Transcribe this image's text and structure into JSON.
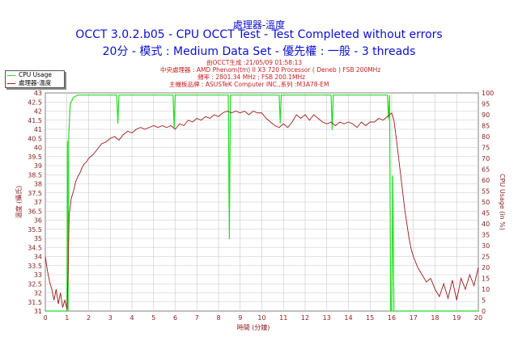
{
  "header": {
    "title_small": "處理器-溫度",
    "title_main": "OCCT 3.0.2.b05 - CPU OCCT Test - Test Completed without errors",
    "title_sub": "20分 - 模式 : Medium Data Set - 優先權 : 一般 - 3 threads"
  },
  "info": {
    "generated": "由OCCT生成 :21/05/09 01:58:13",
    "cpu_label": "中央處理器 :",
    "cpu_value": "AMD Phenom(tm) II X3 720 Processor ( Deneb ) FSB 200MHz",
    "freq_label": "頻率 :",
    "freq_value": "2801.34 MHz ; FSB 200.1MHz",
    "board_label": "主機板品牌 :",
    "board_value": "ASUSTeK Computer INC.,系列 :M3A78-EM"
  },
  "legend": {
    "cpu_usage": "CPU Usage",
    "temp": "處理器-溫度"
  },
  "colors": {
    "title": "#0a0fd2",
    "temp_line": "#a01818",
    "cpu_line": "#22dd22",
    "grid": "#c8c8c8",
    "axis_text": "#8b1a1a"
  },
  "chart_data": {
    "type": "line",
    "xlabel": "時間 (分鐘)",
    "ylabel_left": "溫度 (攝氏)",
    "ylabel_right": "CPU Usage (in %)",
    "xlim": [
      0,
      20
    ],
    "ylim_left": [
      31,
      43
    ],
    "ylim_right": [
      0,
      100
    ],
    "x_ticks": [
      0,
      1,
      2,
      3,
      4,
      5,
      6,
      7,
      8,
      9,
      10,
      11,
      12,
      13,
      14,
      15,
      16,
      17,
      18,
      19,
      20
    ],
    "y_ticks_left": [
      31,
      31.5,
      32,
      32.5,
      33,
      33.5,
      34,
      34.5,
      35,
      35.5,
      36,
      36.5,
      37,
      37.5,
      38,
      38.5,
      39,
      39.5,
      40,
      40.5,
      41,
      41.5,
      42,
      42.5,
      43
    ],
    "y_ticks_right": [
      0,
      5,
      10,
      15,
      20,
      25,
      30,
      35,
      40,
      45,
      50,
      55,
      60,
      65,
      70,
      75,
      80,
      85,
      90,
      95,
      100
    ],
    "grid": true,
    "series": [
      {
        "name": "處理器-溫度",
        "axis": "left",
        "points": [
          [
            0,
            34
          ],
          [
            0.1,
            33.2
          ],
          [
            0.2,
            32.6
          ],
          [
            0.3,
            32.2
          ],
          [
            0.4,
            31.6
          ],
          [
            0.5,
            32.2
          ],
          [
            0.6,
            31.4
          ],
          [
            0.7,
            32
          ],
          [
            0.8,
            31.2
          ],
          [
            0.9,
            31.6
          ],
          [
            1.0,
            31.1
          ],
          [
            1.05,
            33
          ],
          [
            1.1,
            36.3
          ],
          [
            1.2,
            37.2
          ],
          [
            1.3,
            37.6
          ],
          [
            1.4,
            38.1
          ],
          [
            1.5,
            38.4
          ],
          [
            1.6,
            38.6
          ],
          [
            1.7,
            38.9
          ],
          [
            1.8,
            39.1
          ],
          [
            1.9,
            39.2
          ],
          [
            2.0,
            39.4
          ],
          [
            2.2,
            39.6
          ],
          [
            2.4,
            39.9
          ],
          [
            2.6,
            40.2
          ],
          [
            2.8,
            40.3
          ],
          [
            3.0,
            40.5
          ],
          [
            3.2,
            40.6
          ],
          [
            3.4,
            40.4
          ],
          [
            3.6,
            40.7
          ],
          [
            3.8,
            40.9
          ],
          [
            4.0,
            40.8
          ],
          [
            4.2,
            41
          ],
          [
            4.4,
            41.1
          ],
          [
            4.6,
            41
          ],
          [
            4.8,
            41.1
          ],
          [
            5.0,
            41.2
          ],
          [
            5.2,
            41.1
          ],
          [
            5.4,
            41.2
          ],
          [
            5.6,
            41.1
          ],
          [
            5.8,
            41.2
          ],
          [
            6.0,
            41
          ],
          [
            6.2,
            41.3
          ],
          [
            6.4,
            41.2
          ],
          [
            6.6,
            41.5
          ],
          [
            6.8,
            41.4
          ],
          [
            7.0,
            41.6
          ],
          [
            7.2,
            41.5
          ],
          [
            7.4,
            41.7
          ],
          [
            7.6,
            41.6
          ],
          [
            7.8,
            41.8
          ],
          [
            8.0,
            41.7
          ],
          [
            8.2,
            41.9
          ],
          [
            8.4,
            42
          ],
          [
            8.6,
            41.9
          ],
          [
            8.8,
            42
          ],
          [
            9.0,
            41.9
          ],
          [
            9.2,
            42
          ],
          [
            9.4,
            41.8
          ],
          [
            9.6,
            42
          ],
          [
            9.8,
            41.9
          ],
          [
            10.0,
            41.9
          ],
          [
            10.2,
            41.6
          ],
          [
            10.4,
            41.4
          ],
          [
            10.6,
            41.2
          ],
          [
            10.8,
            41.1
          ],
          [
            11.0,
            41.3
          ],
          [
            11.2,
            41.1
          ],
          [
            11.4,
            41.4
          ],
          [
            11.6,
            41.8
          ],
          [
            11.8,
            41.6
          ],
          [
            12.0,
            41.8
          ],
          [
            12.2,
            41.5
          ],
          [
            12.4,
            41.8
          ],
          [
            12.6,
            41.6
          ],
          [
            12.8,
            41.4
          ],
          [
            13.0,
            41.3
          ],
          [
            13.2,
            41.4
          ],
          [
            13.4,
            41.2
          ],
          [
            13.6,
            41.4
          ],
          [
            13.8,
            41.3
          ],
          [
            14.0,
            41.4
          ],
          [
            14.2,
            41.3
          ],
          [
            14.4,
            41.1
          ],
          [
            14.6,
            41.4
          ],
          [
            14.8,
            41.2
          ],
          [
            15.0,
            41.4
          ],
          [
            15.2,
            41.4
          ],
          [
            15.4,
            41.6
          ],
          [
            15.6,
            41.5
          ],
          [
            15.8,
            41.7
          ],
          [
            16.0,
            41.9
          ],
          [
            16.1,
            41.5
          ],
          [
            16.2,
            40.6
          ],
          [
            16.3,
            39.6
          ],
          [
            16.4,
            38.6
          ],
          [
            16.5,
            37.6
          ],
          [
            16.6,
            36.6
          ],
          [
            16.7,
            35.8
          ],
          [
            16.8,
            35
          ],
          [
            16.9,
            34.4
          ],
          [
            17.0,
            34
          ],
          [
            17.2,
            33.4
          ],
          [
            17.4,
            33
          ],
          [
            17.6,
            32.6
          ],
          [
            17.8,
            32.8
          ],
          [
            18.0,
            32.2
          ],
          [
            18.2,
            31.8
          ],
          [
            18.4,
            32.5
          ],
          [
            18.6,
            31.7
          ],
          [
            18.8,
            32.7
          ],
          [
            19.0,
            31.6
          ],
          [
            19.2,
            32.8
          ],
          [
            19.4,
            32.2
          ],
          [
            19.6,
            33
          ],
          [
            19.8,
            32.4
          ],
          [
            20.0,
            33.4
          ]
        ]
      },
      {
        "name": "CPU Usage",
        "axis": "right",
        "points": [
          [
            0,
            0
          ],
          [
            0.95,
            0
          ],
          [
            1.0,
            0
          ],
          [
            1.02,
            78
          ],
          [
            1.05,
            0
          ],
          [
            1.08,
            80
          ],
          [
            1.15,
            95
          ],
          [
            1.3,
            98
          ],
          [
            1.5,
            99
          ],
          [
            2,
            99
          ],
          [
            2.5,
            99
          ],
          [
            3.3,
            99
          ],
          [
            3.35,
            86
          ],
          [
            3.4,
            99
          ],
          [
            4.0,
            99
          ],
          [
            4.6,
            99
          ],
          [
            5.0,
            99
          ],
          [
            5.5,
            99
          ],
          [
            5.9,
            99
          ],
          [
            5.95,
            84
          ],
          [
            6.0,
            99
          ],
          [
            7,
            99
          ],
          [
            8.0,
            99
          ],
          [
            8.45,
            99
          ],
          [
            8.5,
            33
          ],
          [
            8.55,
            99
          ],
          [
            9,
            99
          ],
          [
            9.5,
            99
          ],
          [
            10.0,
            99
          ],
          [
            10.8,
            99
          ],
          [
            10.85,
            86
          ],
          [
            10.9,
            99
          ],
          [
            11.5,
            99
          ],
          [
            12,
            99
          ],
          [
            12.5,
            99
          ],
          [
            13.2,
            99
          ],
          [
            13.25,
            83
          ],
          [
            13.3,
            99
          ],
          [
            13.7,
            99
          ],
          [
            14.5,
            99
          ],
          [
            15.0,
            99
          ],
          [
            15.6,
            99
          ],
          [
            15.8,
            99
          ],
          [
            15.85,
            88
          ],
          [
            15.9,
            99
          ],
          [
            15.95,
            0
          ],
          [
            16.0,
            0
          ],
          [
            16.05,
            62
          ],
          [
            16.1,
            0
          ],
          [
            17,
            0
          ],
          [
            18,
            0
          ],
          [
            19,
            0
          ],
          [
            20,
            0
          ]
        ]
      }
    ]
  }
}
